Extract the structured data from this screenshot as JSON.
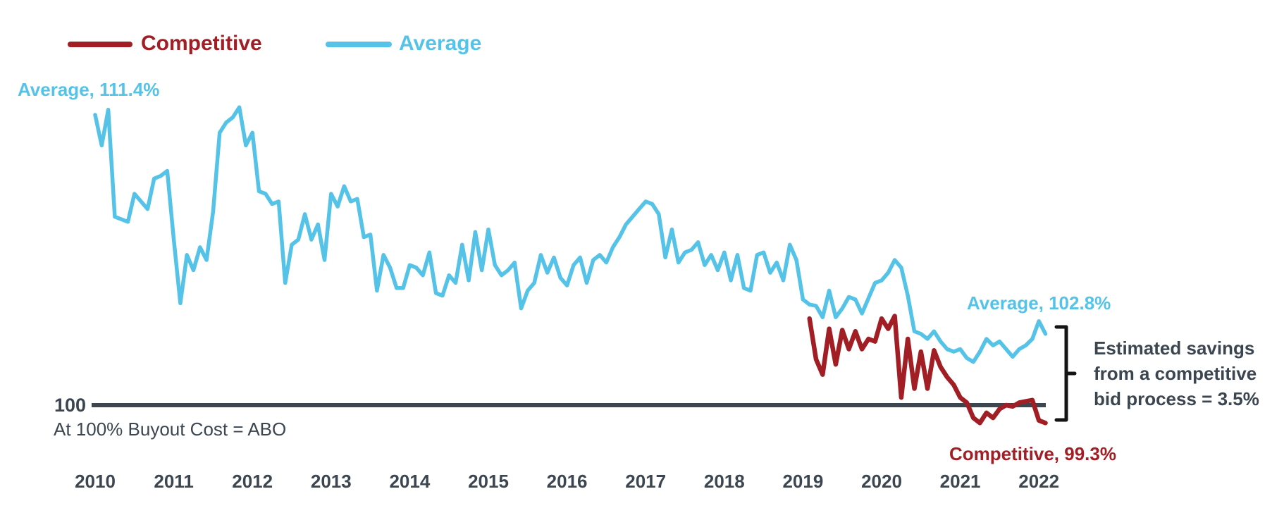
{
  "page": {
    "background": "#ffffff"
  },
  "colors": {
    "competitive": "#a01e24",
    "average": "#55c3e8",
    "axis_text": "#3c4650",
    "baseline": "#3c4650",
    "bracket": "#151515"
  },
  "legend": {
    "items": [
      {
        "label": "Competitive",
        "color": "#a01e24"
      },
      {
        "label": "Average",
        "color": "#55c3e8"
      }
    ]
  },
  "labels": {
    "average_start": "Average, 111.4%",
    "average_end": "Average, 102.8%",
    "competitive_end": "Competitive, 99.3%",
    "baseline_value": "100",
    "baseline_caption": "At 100% Buyout Cost = ABO",
    "savings_line1": "Estimated savings",
    "savings_line2": "from a competitive",
    "savings_line3": "bid process = 3.5%"
  },
  "chart_data": {
    "type": "line",
    "title": "",
    "xlabel": "",
    "ylabel": "",
    "frequency": "monthly",
    "x_axis": {
      "labels": [
        "2010",
        "2011",
        "2012",
        "2013",
        "2014",
        "2015",
        "2016",
        "2017",
        "2018",
        "2019",
        "2020",
        "2021",
        "2022"
      ]
    },
    "ylim": [
      97.5,
      113
    ],
    "grid": false,
    "legend_position": "top-left",
    "baseline": {
      "value": 100,
      "label": "100",
      "caption": "At 100% Buyout Cost = ABO"
    },
    "annotation": {
      "text": "Estimated savings from a competitive bid process = 3.5%",
      "gap_percent": 3.5
    },
    "series": [
      {
        "name": "Average",
        "color": "#55c3e8",
        "start_month": "2010-01",
        "first_value": 111.4,
        "last_value": 102.8,
        "values": [
          111.4,
          110.2,
          111.6,
          107.4,
          107.3,
          107.2,
          108.3,
          108.0,
          107.7,
          108.9,
          109.0,
          109.2,
          106.5,
          104.0,
          105.9,
          105.3,
          106.2,
          105.7,
          107.6,
          110.7,
          111.1,
          111.3,
          111.7,
          110.2,
          110.7,
          108.4,
          108.3,
          107.9,
          108.0,
          104.8,
          106.3,
          106.5,
          107.5,
          106.5,
          107.1,
          105.7,
          108.3,
          107.8,
          108.6,
          108.0,
          108.1,
          106.6,
          106.7,
          104.5,
          105.9,
          105.4,
          104.6,
          104.6,
          105.5,
          105.4,
          105.1,
          106.0,
          104.4,
          104.3,
          105.1,
          104.8,
          106.3,
          104.9,
          106.8,
          105.3,
          106.9,
          105.5,
          105.1,
          105.3,
          105.6,
          103.8,
          104.5,
          104.8,
          105.9,
          105.2,
          105.8,
          105.0,
          104.7,
          105.5,
          105.8,
          104.8,
          105.7,
          105.9,
          105.6,
          106.2,
          106.6,
          107.1,
          107.4,
          107.7,
          108.0,
          107.9,
          107.5,
          105.8,
          106.9,
          105.6,
          106.0,
          106.1,
          106.4,
          105.5,
          105.9,
          105.3,
          106.0,
          104.9,
          105.9,
          104.6,
          104.5,
          105.9,
          106.0,
          105.2,
          105.6,
          104.9,
          106.3,
          105.7,
          104.15,
          103.95,
          103.9,
          103.45,
          104.5,
          103.45,
          103.8,
          104.25,
          104.15,
          103.6,
          104.2,
          104.8,
          104.9,
          105.2,
          105.7,
          105.4,
          104.3,
          102.9,
          102.8,
          102.6,
          102.9,
          102.5,
          102.2,
          102.1,
          102.2,
          101.85,
          101.7,
          102.1,
          102.6,
          102.35,
          102.5,
          102.2,
          101.9,
          102.2,
          102.35,
          102.6,
          103.3,
          102.8
        ]
      },
      {
        "name": "Competitive",
        "color": "#a01e24",
        "start_month": "2019-02",
        "last_value": 99.3,
        "values": [
          103.4,
          101.8,
          101.2,
          103.0,
          101.6,
          102.95,
          102.2,
          102.9,
          102.2,
          102.6,
          102.5,
          103.4,
          103.0,
          103.5,
          100.3,
          102.6,
          100.65,
          102.1,
          100.65,
          102.15,
          101.5,
          101.1,
          100.8,
          100.3,
          100.1,
          99.5,
          99.3,
          99.7,
          99.5,
          99.85,
          100.0,
          99.95,
          100.1,
          100.15,
          100.2,
          99.4,
          99.3
        ]
      }
    ]
  }
}
